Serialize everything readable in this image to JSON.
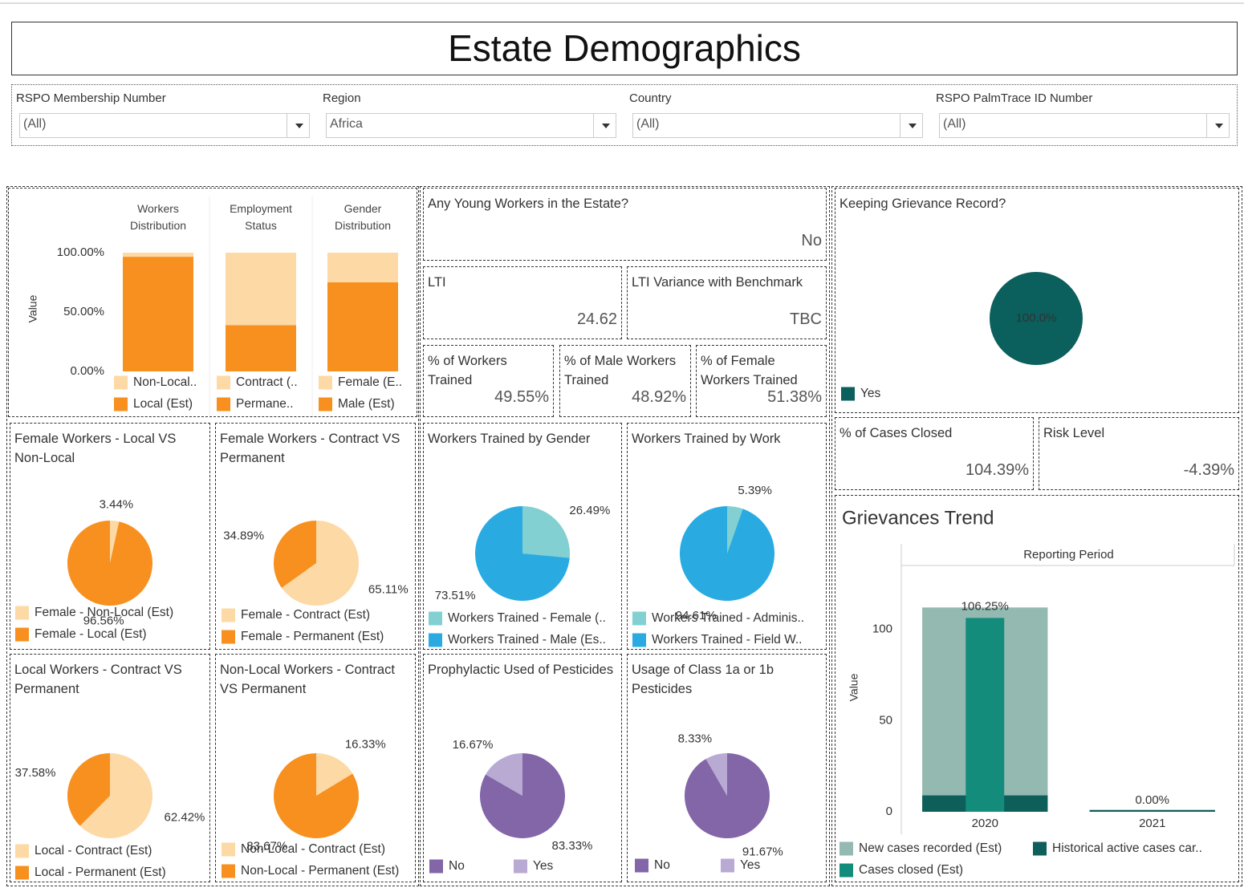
{
  "title": "Estate Demographics",
  "filters": [
    {
      "label": "RSPO Membership Number",
      "value": "(All)"
    },
    {
      "label": "Region",
      "value": "Africa"
    },
    {
      "label": "Country",
      "value": "(All)"
    },
    {
      "label": "RSPO PalmTrace ID Number",
      "value": "(All)"
    }
  ],
  "kpis": [
    {
      "label": "Any Young Workers in the Estate?",
      "value": "No"
    },
    {
      "label": "LTI",
      "value": "24.62"
    },
    {
      "label": "LTI Variance with Benchmark",
      "value": "TBC"
    },
    {
      "label": "% of Workers Trained",
      "value": "49.55%"
    },
    {
      "label": "% of Male Workers Trained",
      "value": "48.92%"
    },
    {
      "label": "% of Female Workers Trained",
      "value": "51.38%"
    },
    {
      "label": "% of Cases Closed",
      "value": "104.39%"
    },
    {
      "label": "Risk Level",
      "value": "-4.39%"
    }
  ],
  "chart_data": [
    {
      "type": "stacked_bar",
      "categories": [
        "Workers Distribution",
        "Employment Status",
        "Gender Distribution"
      ],
      "ylabel": "Value",
      "ylim": [
        0,
        100
      ],
      "yticks": [
        {
          "value": 0,
          "label": "0.00%"
        },
        {
          "value": 50,
          "label": "50.00%"
        },
        {
          "value": 100,
          "label": "100.00%"
        }
      ],
      "stacks": [
        [
          {
            "name": "Non-Local..",
            "color": "#fdd9a5",
            "value": 3.44
          },
          {
            "name": "Local (Est)",
            "color": "#f7901e",
            "value": 96.56
          }
        ],
        [
          {
            "name": "Contract (..",
            "color": "#fdd9a5",
            "value": 61
          },
          {
            "name": "Permane..",
            "color": "#f7901e",
            "value": 39
          }
        ],
        [
          {
            "name": "Female (E..",
            "color": "#fdd9a5",
            "value": 25
          },
          {
            "name": "Male (Est)",
            "color": "#f7901e",
            "value": 75
          }
        ]
      ]
    },
    {
      "type": "pie",
      "title": "Female Workers - Local VS Non-Local",
      "categories": [
        "Female - Non-Local (Est)",
        "Female - Local (Est)"
      ],
      "values": [
        3.44,
        96.56
      ],
      "value_labels": [
        "3.44%",
        "96.56%"
      ],
      "colors": [
        "#fdd9a5",
        "#f7901e"
      ]
    },
    {
      "type": "pie",
      "title": "Female Workers - Contract VS Permanent",
      "categories": [
        "Female - Contract (Est)",
        "Female - Permanent (Est)"
      ],
      "values": [
        65.11,
        34.89
      ],
      "value_labels": [
        "65.11%",
        "34.89%"
      ],
      "colors": [
        "#fdd9a5",
        "#f7901e"
      ]
    },
    {
      "type": "pie",
      "title": "Workers Trained by Gender",
      "categories": [
        "Workers Trained - Female (..",
        "Workers Trained - Male (Es.."
      ],
      "values": [
        26.49,
        73.51
      ],
      "value_labels": [
        "26.49%",
        "73.51%"
      ],
      "colors": [
        "#82d0d1",
        "#29abe2"
      ]
    },
    {
      "type": "pie",
      "title": "Workers Trained by Work",
      "categories": [
        "Workers Trained - Adminis..",
        "Workers Trained - Field W.."
      ],
      "values": [
        5.39,
        94.61
      ],
      "value_labels": [
        "5.39%",
        "94.61%"
      ],
      "colors": [
        "#82d0d1",
        "#29abe2"
      ]
    },
    {
      "type": "pie",
      "title": "Local Workers - Contract VS Permanent",
      "categories": [
        "Local - Contract (Est)",
        "Local - Permanent (Est)"
      ],
      "values": [
        62.42,
        37.58
      ],
      "value_labels": [
        "62.42%",
        "37.58%"
      ],
      "colors": [
        "#fdd9a5",
        "#f7901e"
      ]
    },
    {
      "type": "pie",
      "title": "Non-Local Workers - Contract VS Permanent",
      "categories": [
        "Non-Local - Contract (Est)",
        "Non-Local - Permanent (Est)"
      ],
      "values": [
        16.33,
        83.67
      ],
      "value_labels": [
        "16.33%",
        "83.67%"
      ],
      "colors": [
        "#fdd9a5",
        "#f7901e"
      ]
    },
    {
      "type": "pie",
      "title": "Prophylactic Used of Pesticides",
      "categories": [
        "No",
        "Yes"
      ],
      "values": [
        83.33,
        16.67
      ],
      "value_labels": [
        "83.33%",
        "16.67%"
      ],
      "colors": [
        "#8266a8",
        "#b8aad2"
      ]
    },
    {
      "type": "pie",
      "title": "Usage of Class 1a or 1b Pesticides",
      "categories": [
        "No",
        "Yes"
      ],
      "values": [
        91.67,
        8.33
      ],
      "value_labels": [
        "91.67%",
        "8.33%"
      ],
      "colors": [
        "#8266a8",
        "#b8aad2"
      ]
    },
    {
      "type": "pie",
      "title": "Keeping Grievance Record?",
      "categories": [
        "Yes"
      ],
      "values": [
        100
      ],
      "value_labels": [
        "100.0%"
      ],
      "colors": [
        "#0b5f5c"
      ]
    },
    {
      "type": "bar",
      "title": "Grievances Trend",
      "subtitle": "Reporting Period",
      "ylabel": "Value",
      "categories": [
        "2020",
        "2021"
      ],
      "ylim": [
        0,
        135
      ],
      "yticks": [
        0,
        50,
        100
      ],
      "series": [
        {
          "name": "New cases recorded (Est)",
          "color": "#93b9b0",
          "values": [
            103,
            0
          ]
        },
        {
          "name": "Historical active cases car..",
          "color": "#0e5e5a",
          "values": [
            9,
            1
          ]
        },
        {
          "name": "Cases closed (Est)",
          "color": "#138c7c",
          "values": [
            106.25,
            0
          ],
          "value_labels": [
            "106.25%",
            "0.00%"
          ]
        }
      ]
    }
  ]
}
